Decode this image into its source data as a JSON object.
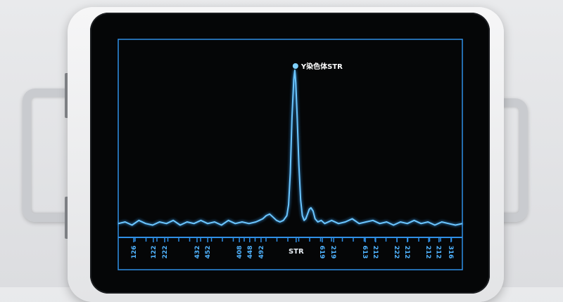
{
  "chart_data": {
    "type": "line",
    "title": "",
    "xlabel": "",
    "ylabel": "",
    "xlim": [
      0,
      100
    ],
    "ylim": [
      0,
      100
    ],
    "grid": false,
    "colors": {
      "line": "#6cc6ff",
      "frame": "#2f8fe6",
      "label": "#ffffff",
      "marker": "#7fd0ff"
    },
    "peak_annotation": {
      "label": "Y染色体STR",
      "x": 51.3,
      "y": 100
    },
    "series": [
      {
        "x": [
          0,
          2,
          4,
          6,
          8,
          10,
          12,
          14,
          16,
          18,
          20,
          22,
          24,
          26,
          28,
          30,
          32,
          34,
          36,
          38,
          40,
          41,
          42,
          43,
          44,
          45,
          46,
          47,
          48,
          49,
          49.5,
          50,
          50.5,
          51,
          51.3,
          51.6,
          52,
          52.5,
          53,
          53.5,
          54,
          54.5,
          55,
          55.5,
          56,
          56.6,
          57.2,
          58,
          59,
          60,
          62,
          64,
          66,
          68,
          70,
          72,
          74,
          76,
          78,
          80,
          82,
          84,
          86,
          88,
          90,
          92,
          94,
          96,
          98,
          100
        ],
        "y": [
          3,
          4,
          2,
          5,
          3,
          2,
          4,
          3,
          5,
          2,
          4,
          3,
          5,
          3,
          4,
          2,
          5,
          3,
          4,
          3,
          4,
          5,
          6,
          8,
          9,
          7,
          5,
          4,
          5,
          8,
          15,
          35,
          70,
          94,
          100,
          92,
          70,
          40,
          18,
          8,
          5,
          6,
          9,
          12,
          13,
          11,
          6,
          4,
          5,
          3,
          5,
          3,
          4,
          6,
          3,
          4,
          5,
          3,
          4,
          2,
          4,
          3,
          5,
          3,
          4,
          2,
          4,
          3,
          2,
          3
        ]
      }
    ],
    "x_tick_labels": [
      {
        "x": 4.5,
        "label": "126"
      },
      {
        "x": 10.2,
        "label": "122"
      },
      {
        "x": 13.5,
        "label": "222"
      },
      {
        "x": 22.9,
        "label": "432"
      },
      {
        "x": 26.0,
        "label": "452"
      },
      {
        "x": 35.2,
        "label": "408"
      },
      {
        "x": 38.2,
        "label": "448"
      },
      {
        "x": 41.5,
        "label": "492"
      },
      {
        "x": 51.7,
        "label": "STR"
      },
      {
        "x": 59.3,
        "label": "619"
      },
      {
        "x": 62.6,
        "label": "219"
      },
      {
        "x": 71.8,
        "label": "613"
      },
      {
        "x": 74.8,
        "label": "212"
      },
      {
        "x": 81.0,
        "label": "222"
      },
      {
        "x": 84.0,
        "label": "212"
      },
      {
        "x": 90.2,
        "label": "212"
      },
      {
        "x": 93.2,
        "label": "212"
      },
      {
        "x": 96.7,
        "label": "316"
      }
    ]
  }
}
